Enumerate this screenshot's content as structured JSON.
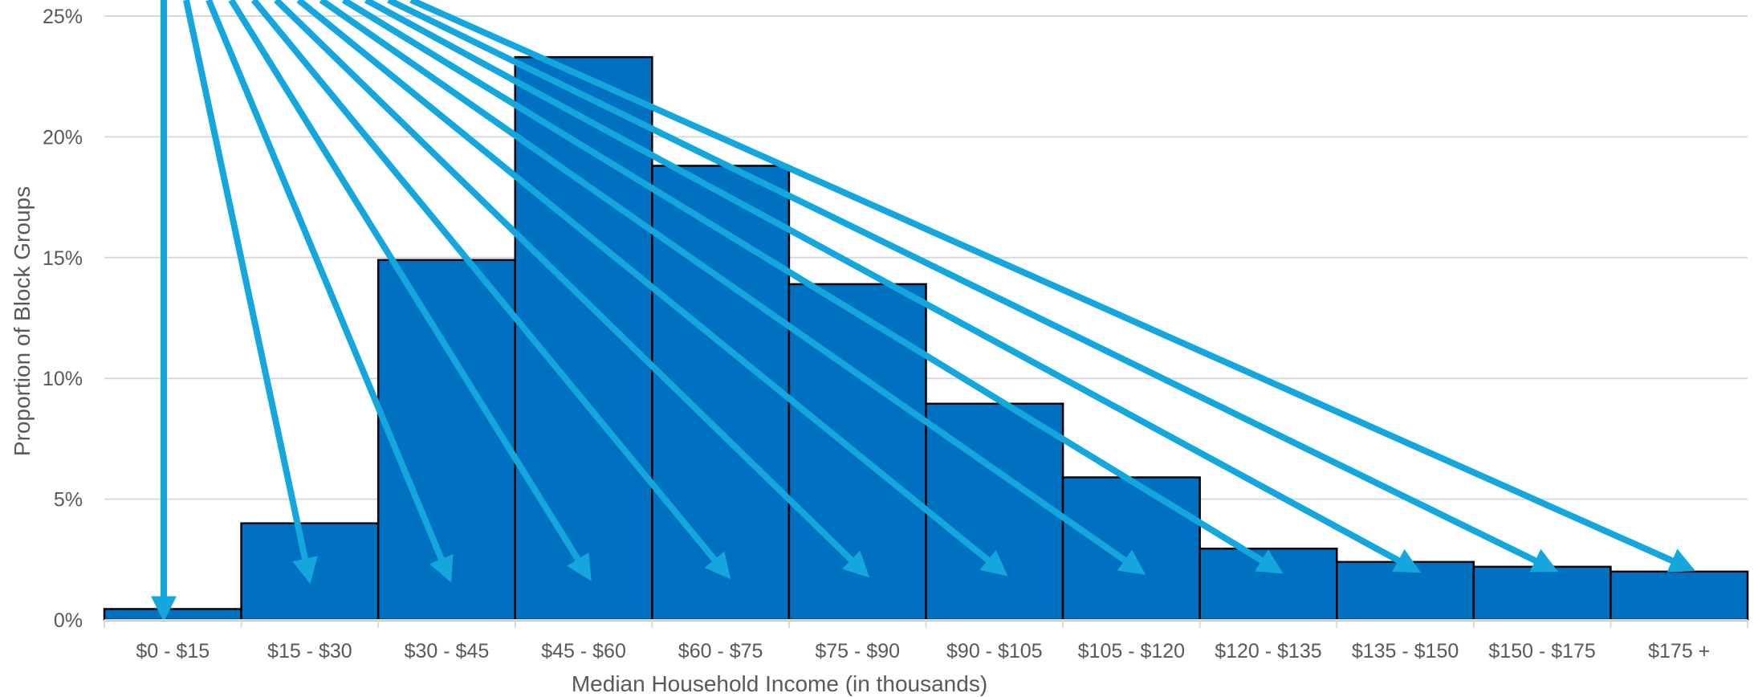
{
  "chart_data": {
    "type": "bar",
    "title": "",
    "xlabel": "Median Household Income (in thousands)",
    "ylabel": "Proportion of Block Groups",
    "categories": [
      "$0 - $15",
      "$15 - $30",
      "$30 - $45",
      "$45 - $60",
      "$60 - $75",
      "$75 - $90",
      "$90 - $105",
      "$105 - $120",
      "$120 - $135",
      "$135 - $150",
      "$150 - $175",
      "$175 +"
    ],
    "values": [
      0.45,
      4.0,
      14.9,
      23.3,
      18.8,
      13.9,
      8.95,
      5.9,
      2.95,
      2.4,
      2.2,
      2.0
    ],
    "ylim": [
      0,
      25
    ],
    "yticks": [
      0,
      5,
      10,
      15,
      20,
      25
    ],
    "ytick_labels": [
      "0%",
      "5%",
      "10%",
      "15%",
      "20%",
      "25%"
    ],
    "grid": true,
    "legend": "none",
    "bar_color": "#0070c0",
    "annotation_arrow_color": "#13a7dd",
    "annotations": "arrows from above the plot point down into each bar"
  }
}
